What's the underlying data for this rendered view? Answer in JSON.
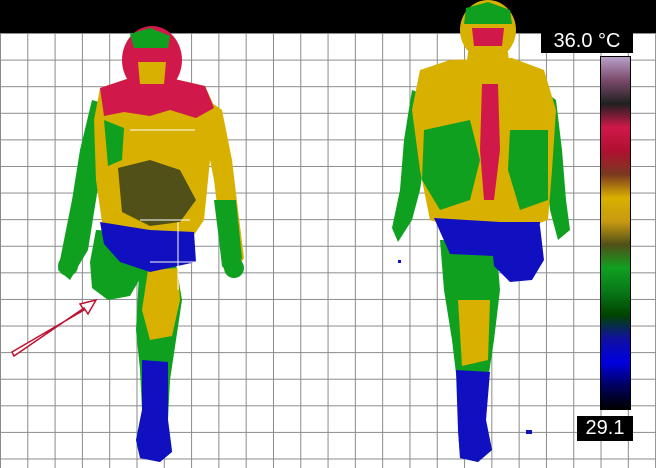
{
  "scale": {
    "max_label": "36.0 °C",
    "min_label": "29.1",
    "palette": [
      "#b8a0c8",
      "#7a4a6a",
      "#202020",
      "#d0184a",
      "#b01030",
      "#7a3820",
      "#d8b000",
      "#c89a10",
      "#505018",
      "#10a020",
      "#087818",
      "#004400",
      "#1010a0",
      "#0000e0",
      "#000060",
      "#000000"
    ]
  }
}
